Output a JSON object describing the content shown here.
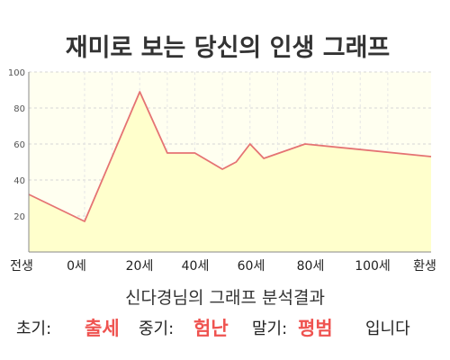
{
  "chart_data": {
    "type": "area",
    "title": "재미로 보는 당신의 인생 그래프",
    "x_tick_labels": [
      "전생",
      "0세",
      "20세",
      "40세",
      "60세",
      "80세",
      "100세",
      "환생"
    ],
    "x": [
      -10,
      0,
      20,
      30,
      40,
      50,
      55,
      60,
      65,
      80,
      90
    ],
    "values": [
      32,
      17,
      89,
      55,
      55,
      46,
      50,
      60,
      52,
      60,
      53
    ],
    "ylim": [
      0,
      100
    ],
    "y_ticks": [
      20,
      40,
      60,
      80,
      100
    ],
    "grid": true,
    "fill_color": "#ffffcc",
    "line_color": "#e57373"
  },
  "summary": {
    "line1": "신다경님의 그래프 분석결과",
    "early_label": "초기:",
    "early_value": "출세",
    "mid_label": "중기:",
    "mid_value": "험난",
    "late_label": "말기:",
    "late_value": "평범",
    "tail": "입니다"
  },
  "colors": {
    "highlight": "#ef5350",
    "title": "#333333"
  }
}
